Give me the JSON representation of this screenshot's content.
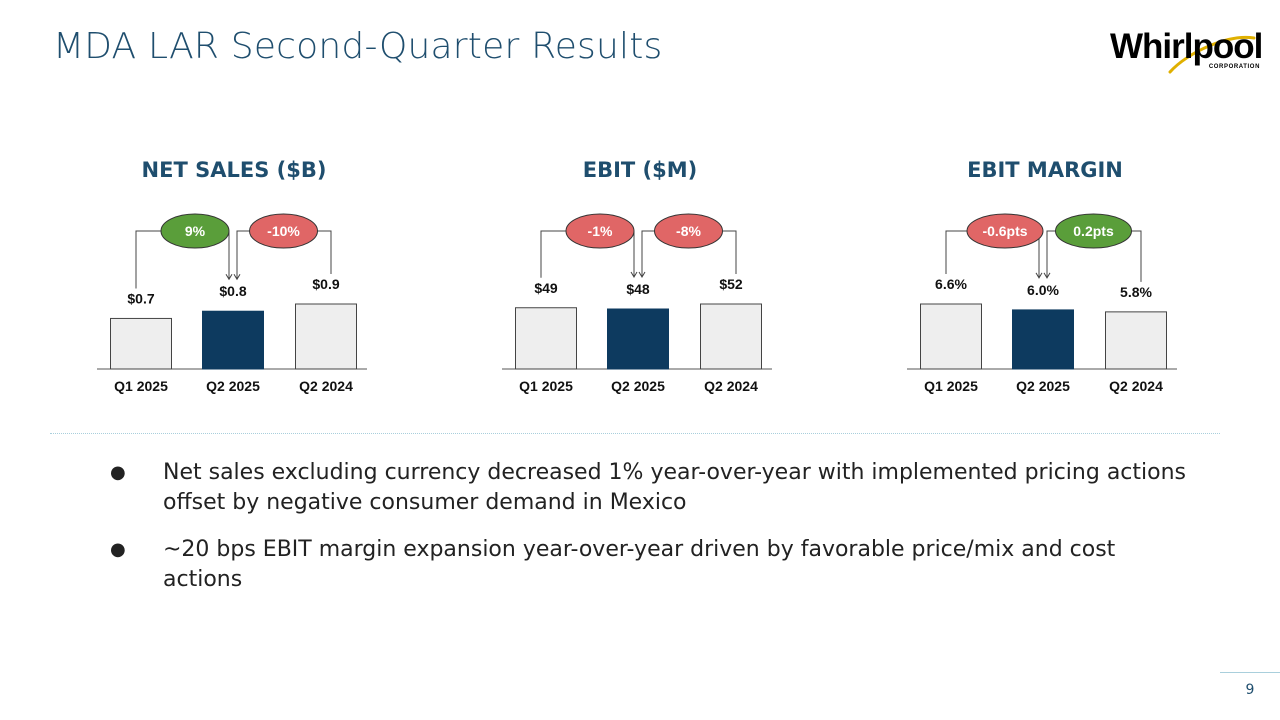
{
  "slide": {
    "title": "MDA LAR Second-Quarter Results",
    "page_number": "9"
  },
  "logo": {
    "wordmark": "Whirlpool",
    "subtitle": "CORPORATION"
  },
  "colors": {
    "title": "#1f4e6e",
    "bar_default": "#eeeeee",
    "bar_highlight": "#0d3a5f",
    "badge_positive": "#5a9e3a",
    "badge_negative": "#e06666"
  },
  "bullets": [
    "Net sales excluding currency decreased 1% year-over-year with implemented pricing actions offset by negative consumer demand in Mexico",
    "~20 bps EBIT margin expansion year-over-year driven by favorable price/mix and cost actions"
  ],
  "chart_data": [
    {
      "type": "bar",
      "title": "NET SALES ($B)",
      "categories": [
        "Q1 2025",
        "Q2 2025",
        "Q2 2024"
      ],
      "values": [
        0.7,
        0.8,
        0.9
      ],
      "value_labels": [
        "$0.7",
        "$0.8",
        "$0.9"
      ],
      "highlight_index": 1,
      "changes": [
        {
          "label": "9%",
          "sentiment": "positive",
          "from": 0,
          "to": 1
        },
        {
          "label": "-10%",
          "sentiment": "negative",
          "from": 2,
          "to": 1
        }
      ]
    },
    {
      "type": "bar",
      "title": "EBIT ($M)",
      "categories": [
        "Q1 2025",
        "Q2 2025",
        "Q2 2024"
      ],
      "values": [
        49,
        48,
        52
      ],
      "value_labels": [
        "$49",
        "$48",
        "$52"
      ],
      "highlight_index": 1,
      "changes": [
        {
          "label": "-1%",
          "sentiment": "negative",
          "from": 0,
          "to": 1
        },
        {
          "label": "-8%",
          "sentiment": "negative",
          "from": 2,
          "to": 1
        }
      ]
    },
    {
      "type": "bar",
      "title": "EBIT MARGIN",
      "categories": [
        "Q1 2025",
        "Q2 2025",
        "Q2 2024"
      ],
      "values": [
        6.6,
        6.0,
        5.8
      ],
      "value_labels": [
        "6.6%",
        "6.0%",
        "5.8%"
      ],
      "highlight_index": 1,
      "changes": [
        {
          "label": "-0.6pts",
          "sentiment": "negative",
          "from": 0,
          "to": 1
        },
        {
          "label": "0.2pts",
          "sentiment": "positive",
          "from": 2,
          "to": 1
        }
      ]
    }
  ]
}
